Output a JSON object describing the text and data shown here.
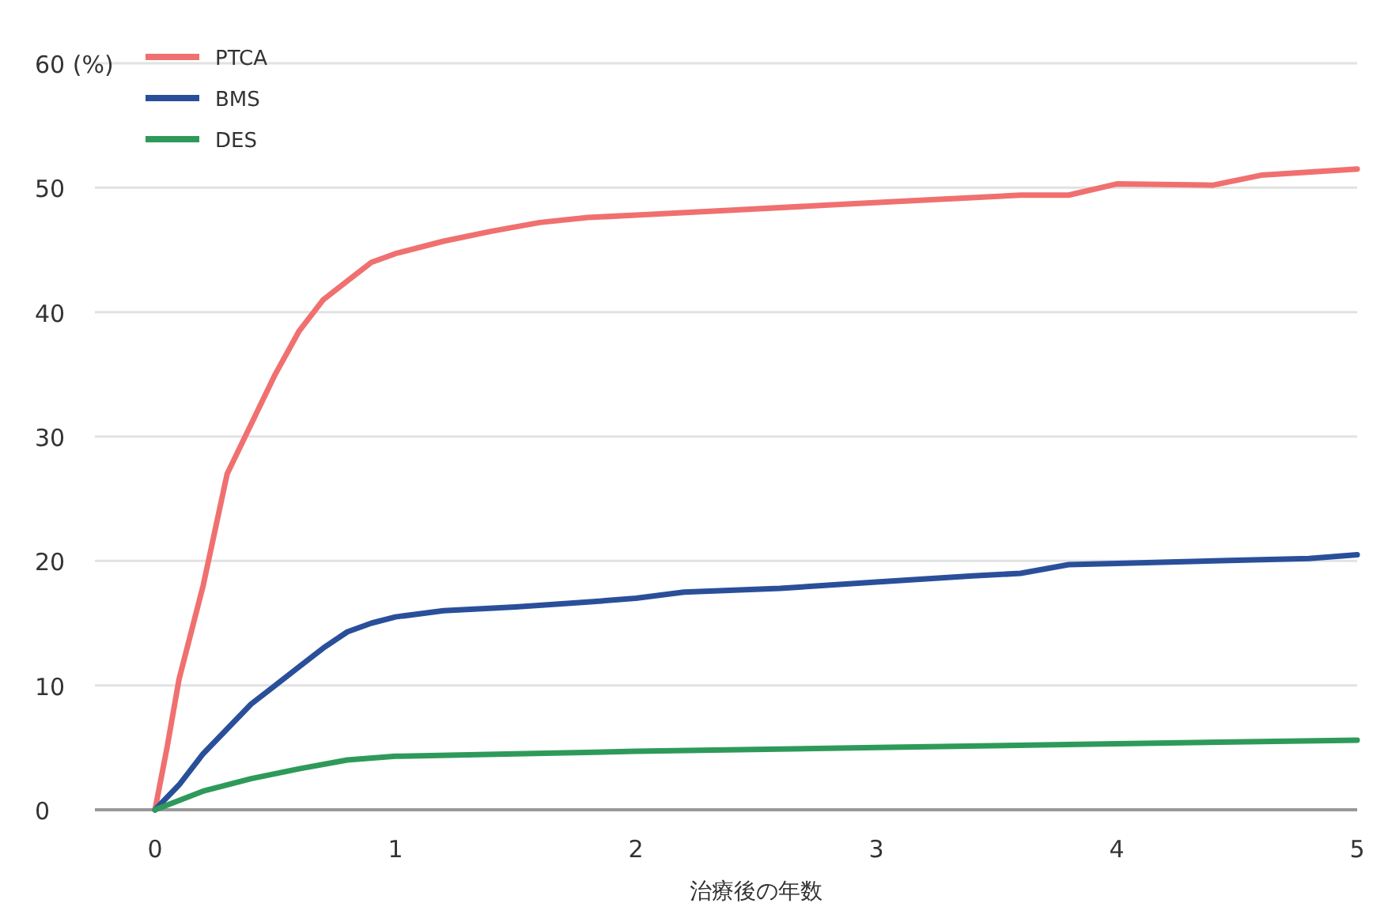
{
  "chart_data": {
    "type": "line",
    "xlabel": "治療後の年数",
    "xlim": [
      -0.25,
      5
    ],
    "xticks": [
      0,
      1,
      2,
      3,
      4,
      5
    ],
    "ylim": [
      0,
      60
    ],
    "yticks": [
      0,
      10,
      20,
      30,
      40,
      50,
      {
        "value": 60,
        "label": "60 (%)"
      }
    ],
    "grid": "y",
    "legend": "top left",
    "marker": "none",
    "line_style": "solid",
    "series": [
      {
        "name": "PTCA",
        "color": "#f07070",
        "x": [
          0,
          0.05,
          0.1,
          0.2,
          0.3,
          0.4,
          0.5,
          0.6,
          0.7,
          0.8,
          0.9,
          1,
          1.2,
          1.4,
          1.6,
          1.8,
          2,
          2.4,
          2.8,
          3.2,
          3.6,
          3.8,
          4,
          4.4,
          4.6,
          5
        ],
        "values": [
          0,
          5,
          10.5,
          18,
          27,
          31,
          35,
          38.5,
          41,
          42.5,
          44,
          44.7,
          45.7,
          46.5,
          47.2,
          47.6,
          47.8,
          48.2,
          48.6,
          49,
          49.4,
          49.4,
          50.3,
          50.2,
          51,
          51.5
        ]
      },
      {
        "name": "BMS",
        "color": "#2a4f9a",
        "x": [
          0,
          0.1,
          0.2,
          0.3,
          0.4,
          0.5,
          0.6,
          0.7,
          0.8,
          0.9,
          1,
          1.2,
          1.5,
          1.8,
          2,
          2.2,
          2.6,
          3,
          3.4,
          3.6,
          3.8,
          4,
          4.4,
          4.8,
          5
        ],
        "values": [
          0,
          2,
          4.5,
          6.5,
          8.5,
          10,
          11.5,
          13,
          14.3,
          15,
          15.5,
          16,
          16.3,
          16.7,
          17,
          17.5,
          17.8,
          18.3,
          18.8,
          19,
          19.7,
          19.8,
          20,
          20.2,
          20.5
        ]
      },
      {
        "name": "DES",
        "color": "#2e9a5a",
        "x": [
          0,
          0.2,
          0.4,
          0.6,
          0.8,
          1,
          1.5,
          2,
          3,
          4,
          5
        ],
        "values": [
          0,
          1.5,
          2.5,
          3.3,
          4,
          4.3,
          4.5,
          4.7,
          5,
          5.3,
          5.6
        ]
      }
    ]
  }
}
